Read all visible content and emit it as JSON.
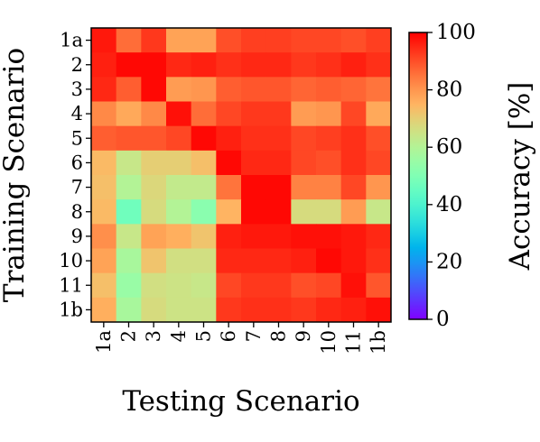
{
  "chart_data": {
    "type": "heatmap",
    "title": "",
    "xlabel": "Testing Scenario",
    "ylabel": "Training Scenario",
    "x_categories": [
      "1a",
      "2",
      "3",
      "4",
      "5",
      "6",
      "7",
      "8",
      "9",
      "10",
      "11",
      "1b"
    ],
    "y_categories": [
      "1a",
      "2",
      "3",
      "4",
      "5",
      "6",
      "7",
      "8",
      "9",
      "10",
      "11",
      "1b"
    ],
    "values": [
      [
        97,
        86,
        93,
        78,
        78,
        90,
        92,
        92,
        91,
        91,
        90,
        92
      ],
      [
        96,
        99,
        99,
        95,
        96,
        94,
        95,
        95,
        93,
        94,
        96,
        94
      ],
      [
        95,
        88,
        99,
        79,
        80,
        88,
        89,
        89,
        87,
        88,
        87,
        85
      ],
      [
        82,
        77,
        82,
        98,
        86,
        91,
        93,
        93,
        79,
        80,
        91,
        77
      ],
      [
        88,
        89,
        89,
        91,
        99,
        96,
        94,
        94,
        91,
        92,
        94,
        90
      ],
      [
        74,
        64,
        70,
        70,
        73,
        99,
        95,
        95,
        91,
        90,
        94,
        91
      ],
      [
        73,
        60,
        68,
        63,
        63,
        85,
        99,
        99,
        83,
        83,
        91,
        80
      ],
      [
        74,
        47,
        67,
        60,
        52,
        75,
        99,
        99,
        67,
        67,
        79,
        64
      ],
      [
        81,
        64,
        78,
        76,
        72,
        96,
        97,
        97,
        98,
        98,
        97,
        95
      ],
      [
        78,
        58,
        72,
        66,
        66,
        95,
        95,
        95,
        96,
        99,
        97,
        94
      ],
      [
        73,
        55,
        66,
        65,
        64,
        91,
        93,
        93,
        90,
        91,
        98,
        89
      ],
      [
        76,
        58,
        67,
        65,
        65,
        93,
        94,
        94,
        93,
        95,
        96,
        98
      ]
    ],
    "colormap": "rainbow",
    "colorbar": {
      "label": "Accuracy [%]",
      "range": [
        0,
        100
      ],
      "ticks": [
        "0",
        "20",
        "40",
        "60",
        "80",
        "100"
      ]
    },
    "grid": false,
    "legend": "none"
  }
}
